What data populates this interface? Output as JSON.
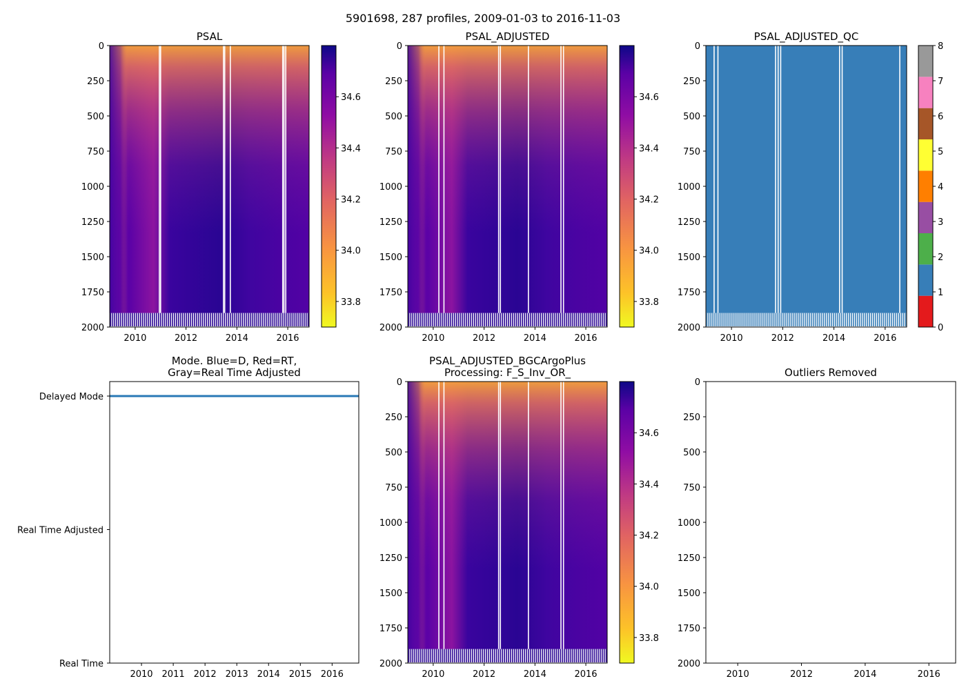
{
  "figure": {
    "suptitle": "5901698, 287 profiles, 2009-01-03 to 2016-11-03"
  },
  "colors": {
    "mode_line": "#2878b5",
    "qc_fill": "#377eb8",
    "qc_palette": [
      "#e41a1c",
      "#377eb8",
      "#4daf4a",
      "#984ea3",
      "#ff7f00",
      "#ffff33",
      "#a65628",
      "#f781bf",
      "#999999"
    ]
  },
  "chart_data": [
    {
      "id": "psal",
      "type": "heatmap",
      "title": "PSAL",
      "x_range": [
        2009.0,
        2016.84
      ],
      "ylim": [
        2000,
        0
      ],
      "x_ticks": [
        2010,
        2012,
        2014,
        2016
      ],
      "y_ticks": [
        0,
        250,
        500,
        750,
        1000,
        1250,
        1500,
        1750,
        2000
      ],
      "colorbar": {
        "cmap": "plasma_r",
        "range": [
          33.7,
          34.8
        ],
        "ticks": [
          33.8,
          34.0,
          34.2,
          34.4,
          34.6
        ]
      },
      "gap_years": [
        2010.93,
        2010.98,
        2013.45,
        2013.5,
        2013.72,
        2015.78,
        2015.83,
        2015.9
      ],
      "max_depth": 1900
    },
    {
      "id": "psal_adj",
      "type": "heatmap",
      "title": "PSAL_ADJUSTED",
      "x_range": [
        2009.0,
        2016.84
      ],
      "ylim": [
        2000,
        0
      ],
      "x_ticks": [
        2010,
        2012,
        2014,
        2016
      ],
      "y_ticks": [
        0,
        250,
        500,
        750,
        1000,
        1250,
        1500,
        1750,
        2000
      ],
      "colorbar": {
        "cmap": "plasma_r",
        "range": [
          33.7,
          34.8
        ],
        "ticks": [
          33.8,
          34.0,
          34.2,
          34.4,
          34.6
        ]
      },
      "gap_years": [
        2010.2,
        2010.4,
        2012.55,
        2012.62,
        2013.72,
        2015.0,
        2015.1
      ],
      "max_depth": 1900
    },
    {
      "id": "psal_qc",
      "type": "heatmap",
      "title": "PSAL_ADJUSTED_QC",
      "x_range": [
        2009.0,
        2016.84
      ],
      "ylim": [
        2000,
        0
      ],
      "x_ticks": [
        2010,
        2012,
        2014,
        2016
      ],
      "y_ticks": [
        0,
        250,
        500,
        750,
        1000,
        1250,
        1500,
        1750,
        2000
      ],
      "colorbar": {
        "cmap": "qc",
        "range": [
          0,
          8
        ],
        "ticks": [
          0,
          1,
          2,
          3,
          4,
          5,
          6,
          7,
          8
        ]
      },
      "qc_value": 1,
      "gap_years": [
        2009.3,
        2009.45,
        2011.7,
        2011.8,
        2011.9,
        2014.2,
        2014.3,
        2016.55
      ],
      "max_depth": 1900
    },
    {
      "id": "mode",
      "type": "line",
      "title": "Mode. Blue=D, Red=RT,\nGray=Real Time Adjusted",
      "x_range": [
        2009.0,
        2016.84
      ],
      "x_ticks": [
        2010,
        2011,
        2012,
        2013,
        2014,
        2015,
        2016
      ],
      "y_categories": [
        "Delayed Mode",
        "Real Time Adjusted",
        "Real Time"
      ],
      "series": [
        {
          "name": "D",
          "value": "Delayed Mode",
          "x": [
            2009.0,
            2016.84
          ]
        }
      ]
    },
    {
      "id": "bgc",
      "type": "heatmap",
      "title": "PSAL_ADJUSTED_BGCArgoPlus\nProcessing: F_S_Inv_OR_",
      "x_range": [
        2009.0,
        2016.84
      ],
      "ylim": [
        2000,
        0
      ],
      "x_ticks": [
        2010,
        2012,
        2014,
        2016
      ],
      "y_ticks": [
        0,
        250,
        500,
        750,
        1000,
        1250,
        1500,
        1750,
        2000
      ],
      "colorbar": {
        "cmap": "plasma_r",
        "range": [
          33.7,
          34.8
        ],
        "ticks": [
          33.8,
          34.0,
          34.2,
          34.4,
          34.6
        ]
      },
      "gap_years": [
        2010.2,
        2010.4,
        2012.55,
        2012.62,
        2013.72,
        2015.0,
        2015.1
      ],
      "max_depth": 1900
    },
    {
      "id": "outliers",
      "type": "scatter",
      "title": "Outliers Removed",
      "x_range": [
        2009.0,
        2016.84
      ],
      "ylim": [
        2000,
        0
      ],
      "x_ticks": [
        2010,
        2012,
        2014,
        2016
      ],
      "y_ticks": [
        0,
        250,
        500,
        750,
        1000,
        1250,
        1500,
        1750,
        2000
      ],
      "points": []
    }
  ]
}
